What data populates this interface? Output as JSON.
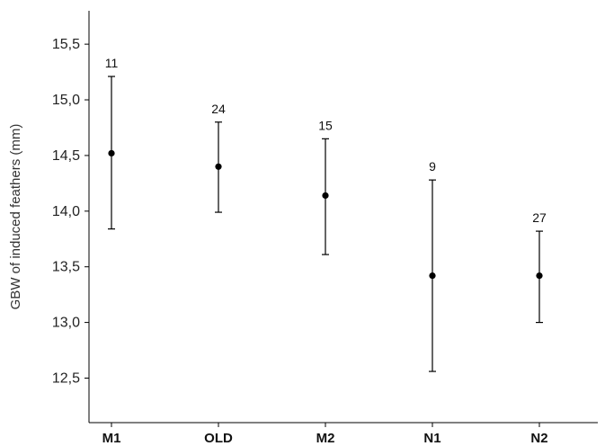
{
  "chart_data": {
    "type": "scatter",
    "subtype": "means-with-error-bars",
    "categories": [
      "M1",
      "OLD",
      "M2",
      "N1",
      "N2"
    ],
    "means": [
      14.52,
      14.4,
      14.14,
      13.42,
      13.42
    ],
    "lower": [
      13.84,
      13.99,
      13.61,
      12.56,
      13.0
    ],
    "upper": [
      15.21,
      14.8,
      14.65,
      14.28,
      13.82
    ],
    "n_labels": [
      "11",
      "24",
      "15",
      "9",
      "27"
    ],
    "ylabel": "GBW of induced feathers (mm)",
    "ylim": [
      12.1,
      15.8
    ],
    "yticks": [
      12.5,
      13.0,
      13.5,
      14.0,
      14.5,
      15.0,
      15.5
    ],
    "ytick_labels": [
      "12,5",
      "13,0",
      "13,5",
      "14,0",
      "14,5",
      "15,0",
      "15,5"
    ],
    "grid": false,
    "marker_color": "#000000",
    "line_color": "#000000"
  }
}
